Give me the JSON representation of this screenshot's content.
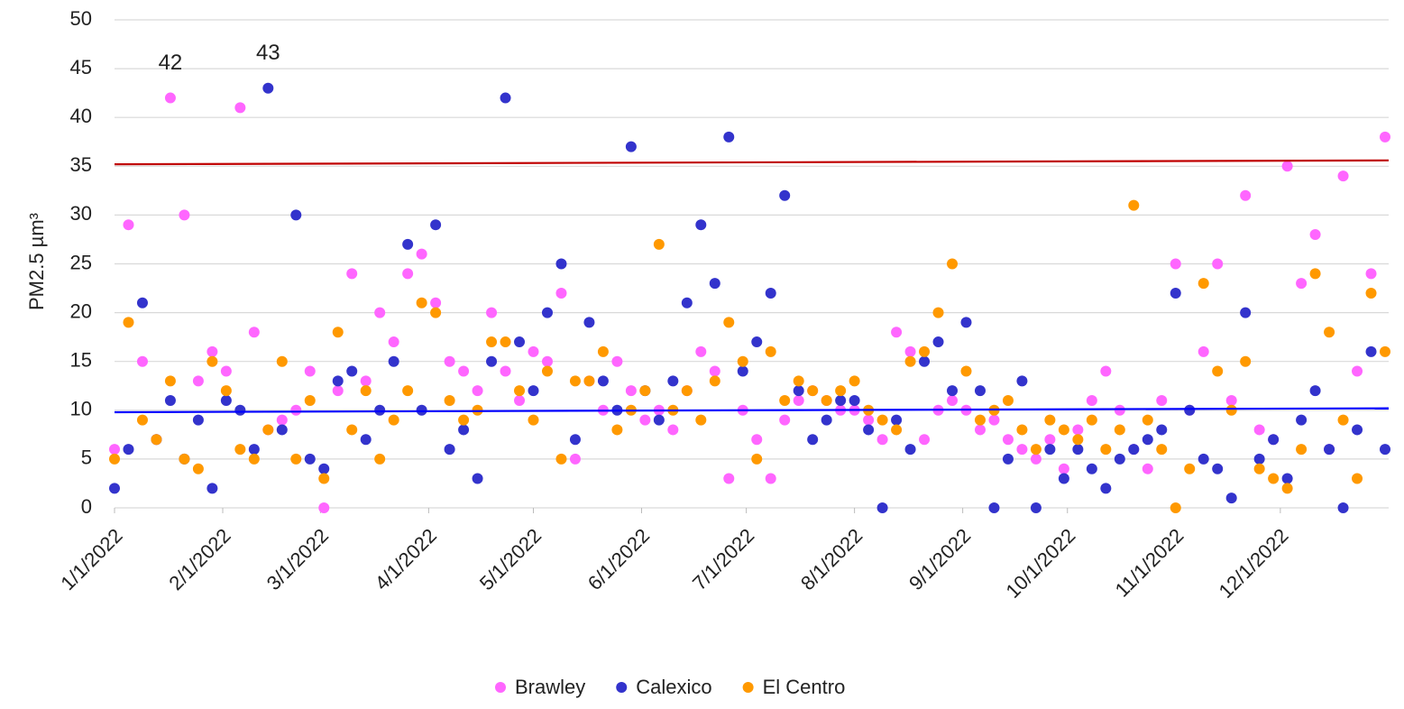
{
  "chart_data": {
    "type": "scatter",
    "y_label": "PM2.5 µm³",
    "x": [
      "1/1/2022",
      "1/5/2022",
      "1/9/2022",
      "1/13/2022",
      "1/17/2022",
      "1/21/2022",
      "1/25/2022",
      "1/29/2022",
      "2/2/2022",
      "2/6/2022",
      "2/10/2022",
      "2/14/2022",
      "2/18/2022",
      "2/22/2022",
      "2/26/2022",
      "3/2/2022",
      "3/6/2022",
      "3/10/2022",
      "3/14/2022",
      "3/18/2022",
      "3/22/2022",
      "3/26/2022",
      "3/30/2022",
      "4/3/2022",
      "4/7/2022",
      "4/11/2022",
      "4/15/2022",
      "4/19/2022",
      "4/23/2022",
      "4/27/2022",
      "5/1/2022",
      "5/5/2022",
      "5/9/2022",
      "5/13/2022",
      "5/17/2022",
      "5/21/2022",
      "5/25/2022",
      "5/29/2022",
      "6/2/2022",
      "6/6/2022",
      "6/10/2022",
      "6/14/2022",
      "6/18/2022",
      "6/22/2022",
      "6/26/2022",
      "6/30/2022",
      "7/4/2022",
      "7/8/2022",
      "7/12/2022",
      "7/16/2022",
      "7/20/2022",
      "7/24/2022",
      "7/28/2022",
      "8/1/2022",
      "8/5/2022",
      "8/9/2022",
      "8/13/2022",
      "8/17/2022",
      "8/21/2022",
      "8/25/2022",
      "8/29/2022",
      "9/2/2022",
      "9/6/2022",
      "9/10/2022",
      "9/14/2022",
      "9/18/2022",
      "9/22/2022",
      "9/26/2022",
      "9/30/2022",
      "10/4/2022",
      "10/8/2022",
      "10/12/2022",
      "10/16/2022",
      "10/20/2022",
      "10/24/2022",
      "10/28/2022",
      "11/1/2022",
      "11/5/2022",
      "11/9/2022",
      "11/13/2022",
      "11/17/2022",
      "11/21/2022",
      "11/25/2022",
      "11/29/2022",
      "12/3/2022",
      "12/7/2022",
      "12/11/2022",
      "12/15/2022",
      "12/19/2022",
      "12/23/2022",
      "12/27/2022",
      "12/31/2022"
    ],
    "series": [
      {
        "name": "Brawley",
        "color": "#ff66ff",
        "values": [
          6,
          29,
          15,
          7,
          42,
          30,
          13,
          16,
          14,
          41,
          18,
          8,
          9,
          10,
          14,
          0,
          12,
          24,
          13,
          20,
          17,
          24,
          26,
          21,
          15,
          14,
          12,
          20,
          14,
          11,
          16,
          15,
          22,
          5,
          13,
          10,
          15,
          12,
          9,
          10,
          8,
          12,
          16,
          14,
          3,
          10,
          7,
          3,
          9,
          11,
          12,
          11,
          10,
          10,
          9,
          7,
          18,
          16,
          7,
          10,
          11,
          10,
          8,
          9,
          7,
          6,
          5,
          7,
          4,
          8,
          11,
          14,
          10,
          6,
          4,
          11,
          25,
          10,
          16,
          25,
          11,
          32,
          8,
          7,
          35,
          23,
          28,
          6,
          34,
          14,
          24,
          38
        ]
      },
      {
        "name": "Calexico",
        "color": "#3333cc",
        "values": [
          2,
          6,
          21,
          7,
          11,
          5,
          9,
          2,
          11,
          10,
          6,
          43,
          8,
          30,
          5,
          4,
          13,
          14,
          7,
          10,
          15,
          27,
          10,
          29,
          6,
          8,
          3,
          15,
          42,
          17,
          12,
          20,
          25,
          7,
          19,
          13,
          10,
          37,
          12,
          9,
          13,
          21,
          29,
          23,
          38,
          14,
          17,
          22,
          32,
          12,
          7,
          9,
          11,
          11,
          8,
          0,
          9,
          6,
          15,
          17,
          12,
          19,
          12,
          0,
          5,
          13,
          0,
          6,
          3,
          6,
          4,
          2,
          5,
          6,
          7,
          8,
          22,
          10,
          5,
          4,
          1,
          20,
          5,
          7,
          3,
          9,
          12,
          6,
          0,
          8,
          16,
          6
        ]
      },
      {
        "name": "El Centro",
        "color": "#ff9900",
        "values": [
          5,
          19,
          9,
          7,
          13,
          5,
          4,
          15,
          12,
          6,
          5,
          8,
          15,
          5,
          11,
          3,
          18,
          8,
          12,
          5,
          9,
          12,
          21,
          20,
          11,
          9,
          10,
          17,
          17,
          12,
          9,
          14,
          5,
          13,
          13,
          16,
          8,
          10,
          12,
          27,
          10,
          12,
          9,
          13,
          19,
          15,
          5,
          16,
          11,
          13,
          12,
          11,
          12,
          13,
          10,
          9,
          8,
          15,
          16,
          20,
          25,
          14,
          9,
          10,
          11,
          8,
          6,
          9,
          8,
          7,
          9,
          6,
          8,
          31,
          9,
          6,
          0,
          4,
          23,
          14,
          10,
          15,
          4,
          3,
          2,
          6,
          24,
          18,
          9,
          3,
          22,
          16
        ]
      }
    ],
    "trend_lines": [
      {
        "color": "#c00000",
        "values": [
          35.2,
          35.6
        ]
      },
      {
        "color": "#0000ff",
        "values": [
          9.8,
          10.2
        ]
      }
    ],
    "annotations": [
      {
        "text": "42",
        "x": "1/17/2022",
        "y": 42
      },
      {
        "text": "43",
        "x": "2/14/2022",
        "y": 43
      }
    ],
    "xlim": [
      "1/1/2022",
      "12/31/2022"
    ],
    "xticks": [
      "1/1/2022",
      "2/1/2022",
      "3/1/2022",
      "4/1/2022",
      "5/1/2022",
      "6/1/2022",
      "7/1/2022",
      "8/1/2022",
      "9/1/2022",
      "10/1/2022",
      "11/1/2022",
      "12/1/2022"
    ],
    "ylim": [
      0,
      50
    ],
    "yticks": [
      0,
      5,
      10,
      15,
      20,
      25,
      30,
      35,
      40,
      45,
      50
    ],
    "grid": true,
    "legend": "bottom"
  }
}
